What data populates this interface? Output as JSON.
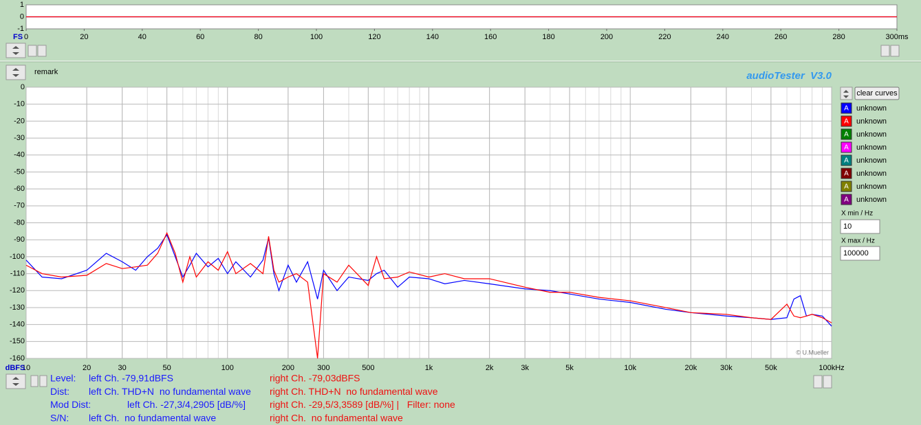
{
  "chart_data": [
    {
      "type": "line",
      "xlim": [
        0,
        300
      ],
      "ylim": [
        -1,
        1
      ],
      "xticks": [
        0,
        20,
        40,
        60,
        80,
        100,
        120,
        140,
        160,
        180,
        200,
        220,
        240,
        260,
        280,
        {
          "value": 300,
          "label": "300ms"
        }
      ],
      "yticks": [
        1,
        0,
        -1
      ],
      "ylabel": "FS",
      "grid": false,
      "x": [
        0,
        300
      ],
      "series": [
        {
          "color": "#0000ff",
          "values": [
            0,
            0
          ]
        },
        {
          "color": "#ff0000",
          "values": [
            0,
            0
          ]
        }
      ]
    },
    {
      "type": "line",
      "xscale": "log",
      "xlim": [
        10,
        100000
      ],
      "ylim": [
        -160,
        0
      ],
      "xticks": [
        10,
        20,
        30,
        50,
        100,
        200,
        300,
        500,
        {
          "value": 1000,
          "label": "1k"
        },
        {
          "value": 2000,
          "label": "2k"
        },
        {
          "value": 3000,
          "label": "3k"
        },
        {
          "value": 5000,
          "label": "5k"
        },
        {
          "value": 10000,
          "label": "10k"
        },
        {
          "value": 20000,
          "label": "20k"
        },
        {
          "value": 30000,
          "label": "30k"
        },
        {
          "value": 50000,
          "label": "50k"
        },
        {
          "value": 100000,
          "label": "100kHz"
        }
      ],
      "yticks": [
        0,
        -10,
        -20,
        -30,
        -40,
        -50,
        -60,
        -70,
        -80,
        -90,
        -100,
        -110,
        -120,
        -130,
        -140,
        -150,
        -160
      ],
      "ylabel": "dBFS",
      "grid": true,
      "credit": "© U.Mueller",
      "x": [
        10,
        12,
        15,
        20,
        25,
        30,
        35,
        40,
        45,
        50,
        55,
        60,
        65,
        70,
        80,
        90,
        100,
        110,
        130,
        150,
        160,
        170,
        180,
        200,
        220,
        250,
        280,
        300,
        350,
        400,
        500,
        550,
        600,
        700,
        800,
        1000,
        1200,
        1500,
        2000,
        3000,
        4000,
        5000,
        7000,
        10000,
        15000,
        20000,
        30000,
        40000,
        50000,
        60000,
        65000,
        70000,
        75000,
        80000,
        90000,
        100000
      ],
      "series": [
        {
          "name": "unknown",
          "color": "#0000ff",
          "values": [
            -102,
            -112,
            -113,
            -108,
            -98,
            -103,
            -108,
            -100,
            -95,
            -87,
            -100,
            -112,
            -105,
            -98,
            -106,
            -101,
            -110,
            -103,
            -112,
            -102,
            -89,
            -110,
            -120,
            -105,
            -115,
            -103,
            -125,
            -108,
            -120,
            -112,
            -114,
            -110,
            -108,
            -118,
            -112,
            -113,
            -116,
            -114,
            -116,
            -119,
            -120,
            -122,
            -125,
            -127,
            -131,
            -133,
            -135,
            -136,
            -137,
            -136,
            -125,
            -123,
            -135,
            -134,
            -135,
            -141
          ]
        },
        {
          "name": "unknown",
          "color": "#ff0000",
          "values": [
            -105,
            -110,
            -112,
            -111,
            -104,
            -107,
            -106,
            -105,
            -98,
            -86,
            -98,
            -115,
            -100,
            -112,
            -103,
            -108,
            -97,
            -110,
            -104,
            -110,
            -88,
            -108,
            -115,
            -112,
            -110,
            -115,
            -160,
            -110,
            -115,
            -105,
            -117,
            -100,
            -113,
            -112,
            -109,
            -112,
            -110,
            -113,
            -113,
            -118,
            -121,
            -121,
            -124,
            -126,
            -130,
            -133,
            -134,
            -136,
            -137,
            -128,
            -135,
            -136,
            -135,
            -134,
            -136,
            -139
          ]
        }
      ]
    }
  ],
  "header": {
    "remark": "remark",
    "app_title": "audioTester  V3.0"
  },
  "curve_panel": {
    "button": "clear curves",
    "icon_label": "A",
    "extra_curves": [
      {
        "name": "unknown",
        "color": "#008000"
      },
      {
        "name": "unknown",
        "color": "#ff00ff"
      },
      {
        "name": "unknown",
        "color": "#008080"
      },
      {
        "name": "unknown",
        "color": "#800000"
      },
      {
        "name": "unknown",
        "color": "#808000"
      },
      {
        "name": "unknown",
        "color": "#800080"
      }
    ],
    "x_min_label": "X min / Hz",
    "x_min": 10,
    "x_max_label": "X max / Hz",
    "x_max": 100000
  },
  "measurements": {
    "rows": [
      {
        "label": "Level:",
        "left": "left Ch. -79,91dBFS",
        "right": "right Ch. -79,03dBFS"
      },
      {
        "label": "Dist:",
        "left": "left Ch. THD+N  no fundamental wave",
        "right": "right Ch. THD+N  no fundamental wave"
      },
      {
        "label": "Mod Dist:",
        "left": "left Ch. -27,3/4,2905 [dB/%]",
        "right": "right Ch. -29,5/3,3589 [dB/%] |   Filter: none"
      },
      {
        "label": "S/N:",
        "left": "left Ch.  no fundamental wave",
        "right": "right Ch.  no fundamental wave"
      }
    ]
  }
}
